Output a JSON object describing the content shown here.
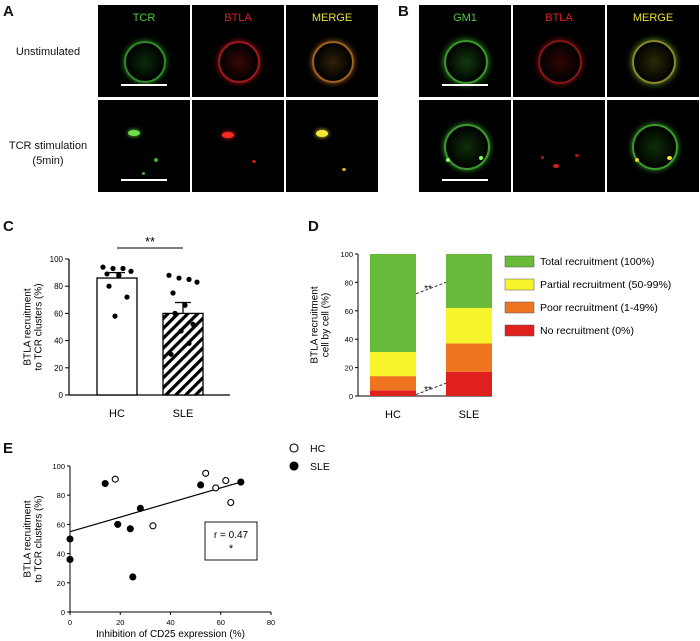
{
  "panel_letters": {
    "a": "A",
    "b": "B",
    "c": "C",
    "d": "D",
    "e": "E"
  },
  "microscopy": {
    "A": {
      "channels": [
        "TCR",
        "BTLA",
        "MERGE"
      ],
      "channel_colors": [
        "#4ccc3a",
        "#e02020",
        "#e8e030"
      ]
    },
    "B": {
      "channels": [
        "GM1",
        "BTLA",
        "MERGE"
      ],
      "channel_colors": [
        "#4ccc3a",
        "#e02020",
        "#e8e030"
      ]
    },
    "rows": [
      "Unstimulated",
      "TCR stimulation\n(5min)"
    ]
  },
  "chart_data": [
    {
      "panel": "C",
      "type": "bar",
      "categories": [
        "HC",
        "SLE"
      ],
      "values": [
        86,
        60
      ],
      "errors": [
        4,
        8
      ],
      "points": {
        "HC": [
          94,
          93,
          93,
          91,
          89,
          88,
          80,
          72,
          58
        ],
        "SLE": [
          88,
          86,
          85,
          83,
          75,
          66,
          60,
          52,
          47,
          38,
          30
        ]
      },
      "ylabel": "BTLA recruitment\nto TCR clusters (%)",
      "ylim": [
        0,
        100
      ],
      "yticks": [
        0,
        20,
        40,
        60,
        80,
        100
      ],
      "significance": "**",
      "fills": [
        "white",
        "hatched"
      ]
    },
    {
      "panel": "D",
      "type": "bar",
      "stacked": true,
      "categories": [
        "HC",
        "SLE"
      ],
      "series": [
        {
          "name": "No recruitment (0%)",
          "values": [
            4,
            17
          ],
          "color": "#e0201c"
        },
        {
          "name": "Poor recruitment (1-49%)",
          "values": [
            10,
            20
          ],
          "color": "#ee7420"
        },
        {
          "name": "Partial recruitment (50-99%)",
          "values": [
            17,
            25
          ],
          "color": "#f7f42e"
        },
        {
          "name": "Total recruitment (100%)",
          "values": [
            69,
            38
          ],
          "color": "#68ba3a"
        }
      ],
      "ylabel": "BTLA recruitment\ncell by cell (%)",
      "ylim": [
        0,
        100
      ],
      "yticks": [
        0,
        20,
        40,
        60,
        80,
        100
      ],
      "significance_marks": [
        "**",
        "**"
      ]
    },
    {
      "panel": "E",
      "type": "scatter",
      "series": [
        {
          "name": "HC",
          "marker": "open-circle",
          "x": [
            18,
            33,
            54,
            58,
            62,
            64
          ],
          "y": [
            91,
            59,
            95,
            85,
            90,
            75
          ]
        },
        {
          "name": "SLE",
          "marker": "filled-circle",
          "x": [
            0,
            0,
            14,
            19,
            24,
            25,
            28,
            52,
            68
          ],
          "y": [
            50,
            36,
            88,
            60,
            57,
            24,
            71,
            87,
            89
          ]
        }
      ],
      "regression": {
        "x": [
          0,
          68
        ],
        "y": [
          55,
          89
        ]
      },
      "xlabel": "Inhibition of CD25 expression (%)",
      "ylabel": "BTLA recruitment\nto TCR clusters (%)",
      "xlim": [
        0,
        80
      ],
      "ylim": [
        0,
        100
      ],
      "xticks": [
        0,
        20,
        40,
        60,
        80
      ],
      "yticks": [
        0,
        20,
        40,
        60,
        80,
        100
      ],
      "annotation": [
        "r = 0.47",
        "*"
      ],
      "legend_position": "top-right"
    }
  ]
}
